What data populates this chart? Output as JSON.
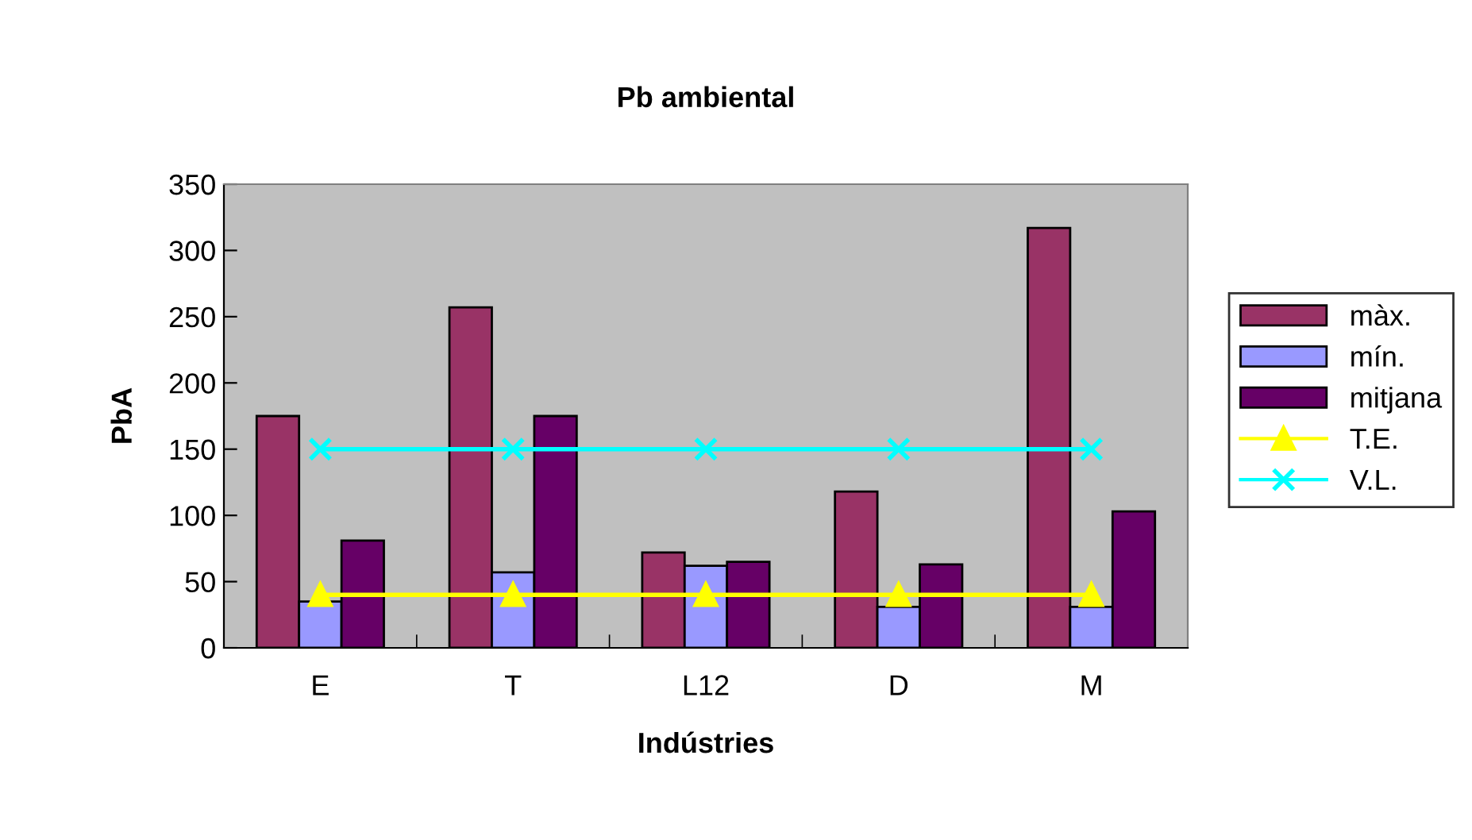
{
  "chart_data": {
    "type": "bar",
    "title": "Pb ambiental",
    "xlabel": "Indústries",
    "ylabel": "PbA",
    "categories": [
      "E",
      "T",
      "L12",
      "D",
      "M"
    ],
    "series": [
      {
        "name": "màx.",
        "color": "#993366",
        "values": [
          175,
          257,
          72,
          118,
          317
        ]
      },
      {
        "name": "mín.",
        "color": "#9999ff",
        "values": [
          35,
          57,
          62,
          31,
          31
        ]
      },
      {
        "name": "mitjana",
        "color": "#660066",
        "values": [
          81,
          175,
          65,
          63,
          103
        ]
      },
      {
        "name": "T.E.",
        "type": "line",
        "marker": "triangle",
        "color": "#ffff00",
        "values": [
          40,
          40,
          40,
          40,
          40
        ]
      },
      {
        "name": "V.L.",
        "type": "line",
        "marker": "cross",
        "color": "#00ffff",
        "values": [
          150,
          150,
          150,
          150,
          150
        ]
      }
    ],
    "ylim": [
      0,
      350
    ],
    "yticks": [
      0,
      50,
      100,
      150,
      200,
      250,
      300,
      350
    ],
    "grid": false,
    "legend": "right"
  }
}
